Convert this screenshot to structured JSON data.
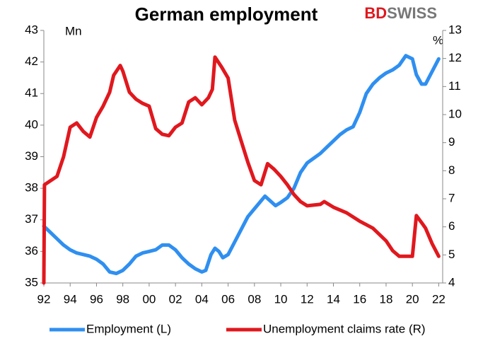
{
  "chart_data": {
    "type": "line",
    "title": "German employment",
    "logo": {
      "first": "BD",
      "second": "SWISS"
    },
    "ylabel": "Mn",
    "y2label": "%",
    "xlim": [
      1992,
      2022.3
    ],
    "xticks": [
      {
        "value": 1992,
        "label": "92"
      },
      {
        "value": 1994,
        "label": "94"
      },
      {
        "value": 1996,
        "label": "96"
      },
      {
        "value": 1998,
        "label": "98"
      },
      {
        "value": 2000,
        "label": "00"
      },
      {
        "value": 2002,
        "label": "02"
      },
      {
        "value": 2004,
        "label": "04"
      },
      {
        "value": 2006,
        "label": "06"
      },
      {
        "value": 2008,
        "label": "08"
      },
      {
        "value": 2010,
        "label": "10"
      },
      {
        "value": 2012,
        "label": "12"
      },
      {
        "value": 2014,
        "label": "14"
      },
      {
        "value": 2016,
        "label": "16"
      },
      {
        "value": 2018,
        "label": "18"
      },
      {
        "value": 2020,
        "label": "20"
      },
      {
        "value": 2022,
        "label": "22"
      }
    ],
    "ylim": [
      35,
      43
    ],
    "yticks": [
      35,
      36,
      37,
      38,
      39,
      40,
      41,
      42,
      43
    ],
    "y2lim": [
      4,
      13
    ],
    "y2ticks": [
      4,
      5,
      6,
      7,
      8,
      9,
      10,
      11,
      12,
      13
    ],
    "legend": "bottom",
    "series": [
      {
        "name": "Employment (L)",
        "color": "#2f8ff0",
        "x": [
          1992,
          1992.5,
          1993,
          1993.5,
          1994,
          1994.5,
          1995,
          1995.5,
          1996,
          1996.5,
          1997,
          1997.5,
          1998,
          1998.5,
          1999,
          1999.5,
          2000,
          2000.5,
          2001,
          2001.5,
          2002,
          2002.5,
          2003,
          2003.5,
          2004,
          2004.3,
          2004.7,
          2005,
          2005.3,
          2005.6,
          2006,
          2006.5,
          2007,
          2007.5,
          2008,
          2008.5,
          2008.8,
          2009.2,
          2009.6,
          2010,
          2010.5,
          2011,
          2011.5,
          2012,
          2012.5,
          2013,
          2013.5,
          2014,
          2014.5,
          2015,
          2015.5,
          2016,
          2016.5,
          2017,
          2017.5,
          2018,
          2018.5,
          2019,
          2019.5,
          2020,
          2020.3,
          2020.7,
          2021,
          2021.5,
          2022
        ],
        "values": [
          36.8,
          36.6,
          36.4,
          36.2,
          36.05,
          35.95,
          35.9,
          35.85,
          35.75,
          35.6,
          35.35,
          35.3,
          35.4,
          35.6,
          35.85,
          35.95,
          36.0,
          36.05,
          36.2,
          36.2,
          36.05,
          35.8,
          35.6,
          35.45,
          35.35,
          35.4,
          35.9,
          36.1,
          36.0,
          35.8,
          35.9,
          36.3,
          36.7,
          37.1,
          37.35,
          37.6,
          37.75,
          37.6,
          37.45,
          37.55,
          37.7,
          38.0,
          38.5,
          38.8,
          38.95,
          39.1,
          39.3,
          39.5,
          39.7,
          39.85,
          39.95,
          40.4,
          41.0,
          41.3,
          41.5,
          41.65,
          41.75,
          41.9,
          42.2,
          42.1,
          41.6,
          41.3,
          41.3,
          41.7,
          42.1
        ]
      },
      {
        "name": "Unemployment claims rate (R)",
        "color": "#e0181e",
        "axis": "y2",
        "x": [
          1992,
          1992.05,
          1993,
          1993.5,
          1994,
          1994.5,
          1995,
          1995.5,
          1996,
          1996.5,
          1997,
          1997.3,
          1997.8,
          1998,
          1998.5,
          1999,
          1999.5,
          2000,
          2000.5,
          2001,
          2001.5,
          2002,
          2002.5,
          2003,
          2003.5,
          2004,
          2004.5,
          2004.8,
          2005,
          2005.5,
          2006,
          2006.5,
          2007,
          2007.5,
          2008,
          2008.5,
          2009,
          2009.5,
          2010,
          2010.5,
          2011,
          2011.5,
          2012,
          2013,
          2013.3,
          2014,
          2015,
          2016,
          2017,
          2018,
          2018.5,
          2019,
          2020,
          2020.3,
          2020.7,
          2021,
          2021.5,
          2022
        ],
        "values": [
          4.0,
          7.5,
          7.8,
          8.5,
          9.55,
          9.7,
          9.4,
          9.2,
          9.9,
          10.3,
          10.8,
          11.4,
          11.75,
          11.55,
          10.8,
          10.55,
          10.4,
          10.3,
          9.5,
          9.3,
          9.25,
          9.55,
          9.7,
          10.45,
          10.6,
          10.35,
          10.6,
          10.9,
          12.05,
          11.7,
          11.3,
          9.8,
          9.05,
          8.3,
          7.65,
          7.5,
          8.25,
          8.05,
          7.8,
          7.5,
          7.15,
          6.9,
          6.75,
          6.8,
          6.9,
          6.7,
          6.5,
          6.2,
          5.95,
          5.5,
          5.15,
          4.95,
          4.95,
          6.4,
          6.15,
          5.95,
          5.4,
          4.95
        ]
      }
    ]
  }
}
